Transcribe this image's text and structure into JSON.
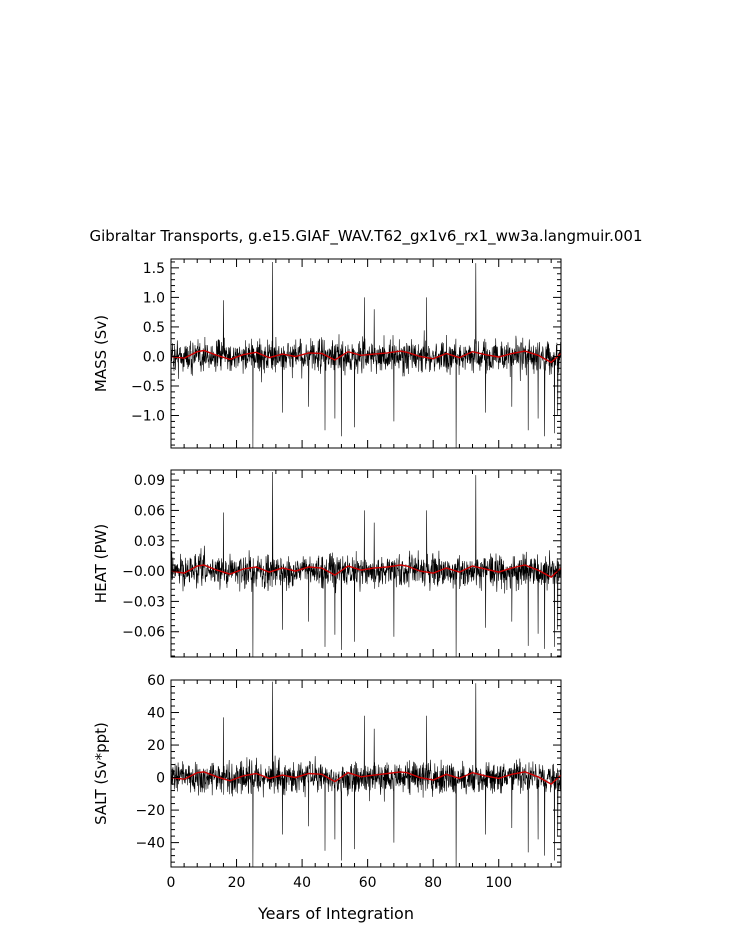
{
  "title": "Gibraltar Transports, g.e15.GIAF_WAV.T62_gx1v6_rx1_ww3a.langmuir.001",
  "chart_data": [
    {
      "type": "line",
      "ylabel": "MASS (Sv)",
      "ylim": [
        -1.55,
        1.65
      ],
      "xlim": [
        0,
        119
      ],
      "yticks": [
        1.5,
        1.0,
        0.5,
        0.0,
        -0.5,
        -1.0
      ],
      "ytick_labels": [
        "1.5",
        "1.0",
        "0.5",
        "0.0",
        "−0.5",
        "−1.0"
      ],
      "grid": false,
      "series": [
        {
          "color": "#000000",
          "spikes": [
            [
              16,
              0.95
            ],
            [
              25,
              -1.55
            ],
            [
              31,
              1.6
            ],
            [
              34,
              -0.95
            ],
            [
              42,
              -0.85
            ],
            [
              47,
              -1.25
            ],
            [
              50,
              -1.05
            ],
            [
              52,
              -1.35
            ],
            [
              56,
              -1.2
            ],
            [
              59,
              1.0
            ],
            [
              62,
              0.8
            ],
            [
              68,
              -1.1
            ],
            [
              78,
              1.0
            ],
            [
              87,
              -1.55
            ],
            [
              93,
              1.58
            ],
            [
              96,
              -0.95
            ],
            [
              104,
              -0.85
            ],
            [
              109,
              -1.25
            ],
            [
              112,
              -1.05
            ],
            [
              114,
              -1.35
            ],
            [
              117,
              -1.3
            ],
            [
              118,
              -1.0
            ]
          ]
        },
        {
          "color": "#cc0000",
          "x": [
            0,
            4,
            8,
            10,
            14,
            18,
            22,
            26,
            30,
            34,
            38,
            42,
            46,
            50,
            54,
            58,
            62,
            66,
            70,
            72,
            76,
            80,
            84,
            88,
            92,
            96,
            100,
            104,
            108,
            112,
            116,
            119
          ],
          "y": [
            0.0,
            -0.03,
            0.08,
            0.1,
            0.02,
            -0.05,
            0.03,
            0.07,
            -0.02,
            0.04,
            0.0,
            0.06,
            0.05,
            -0.06,
            0.08,
            0.02,
            0.04,
            0.06,
            0.09,
            0.07,
            0.0,
            -0.04,
            0.05,
            -0.02,
            0.08,
            0.03,
            -0.01,
            0.05,
            0.09,
            0.02,
            -0.1,
            0.05
          ]
        }
      ]
    },
    {
      "type": "line",
      "ylabel": "HEAT (PW)",
      "ylim": [
        -0.085,
        0.1
      ],
      "xlim": [
        0,
        119
      ],
      "yticks": [
        0.09,
        0.06,
        0.03,
        0.0,
        -0.03,
        -0.06
      ],
      "ytick_labels": [
        "0.09",
        "0.06",
        "0.03",
        "−0.00",
        "−0.03",
        "−0.06"
      ],
      "grid": false,
      "series": [
        {
          "color": "#000000",
          "spikes": [
            [
              16,
              0.058
            ],
            [
              25,
              -0.085
            ],
            [
              31,
              0.098
            ],
            [
              34,
              -0.058
            ],
            [
              42,
              -0.05
            ],
            [
              47,
              -0.075
            ],
            [
              50,
              -0.063
            ],
            [
              52,
              -0.078
            ],
            [
              56,
              -0.07
            ],
            [
              59,
              0.06
            ],
            [
              62,
              0.048
            ],
            [
              68,
              -0.065
            ],
            [
              78,
              0.06
            ],
            [
              87,
              -0.085
            ],
            [
              93,
              0.095
            ],
            [
              96,
              -0.056
            ],
            [
              104,
              -0.05
            ],
            [
              109,
              -0.074
            ],
            [
              112,
              -0.062
            ],
            [
              114,
              -0.077
            ],
            [
              117,
              -0.075
            ],
            [
              118,
              -0.058
            ]
          ]
        },
        {
          "color": "#cc0000",
          "x": [
            0,
            4,
            8,
            10,
            14,
            18,
            22,
            26,
            30,
            34,
            38,
            42,
            46,
            50,
            54,
            58,
            62,
            66,
            70,
            72,
            76,
            80,
            84,
            88,
            92,
            96,
            100,
            104,
            108,
            112,
            116,
            119
          ],
          "y": [
            0.0,
            -0.002,
            0.005,
            0.006,
            0.001,
            -0.003,
            0.002,
            0.004,
            -0.001,
            0.003,
            0.0,
            0.004,
            0.003,
            -0.004,
            0.005,
            0.001,
            0.003,
            0.004,
            0.006,
            0.005,
            0.0,
            -0.002,
            0.003,
            -0.001,
            0.005,
            0.002,
            -0.001,
            0.003,
            0.006,
            0.001,
            -0.006,
            0.003
          ]
        }
      ]
    },
    {
      "type": "line",
      "ylabel": "SALT (Sv*ppt)",
      "ylim": [
        -55,
        60
      ],
      "xlim": [
        0,
        119
      ],
      "xlabel": "Years of Integration",
      "xticks": [
        0,
        20,
        40,
        60,
        80,
        100
      ],
      "yticks": [
        60,
        40,
        20,
        0,
        -20,
        -40
      ],
      "ytick_labels": [
        "60",
        "40",
        "20",
        "0",
        "−20",
        "−40"
      ],
      "grid": false,
      "series": [
        {
          "color": "#000000",
          "spikes": [
            [
              16,
              37
            ],
            [
              25,
              -55
            ],
            [
              31,
              59
            ],
            [
              34,
              -35
            ],
            [
              42,
              -30
            ],
            [
              47,
              -45
            ],
            [
              50,
              -38
            ],
            [
              52,
              -51
            ],
            [
              56,
              -44
            ],
            [
              59,
              38
            ],
            [
              62,
              30
            ],
            [
              68,
              -40
            ],
            [
              78,
              38
            ],
            [
              87,
              -55
            ],
            [
              93,
              58
            ],
            [
              96,
              -35
            ],
            [
              104,
              -31
            ],
            [
              109,
              -46
            ],
            [
              112,
              -38
            ],
            [
              114,
              -48
            ],
            [
              117,
              -51
            ],
            [
              118,
              -36
            ]
          ]
        },
        {
          "color": "#cc0000",
          "x": [
            0,
            4,
            8,
            10,
            14,
            18,
            22,
            26,
            30,
            34,
            38,
            42,
            46,
            50,
            54,
            58,
            62,
            66,
            70,
            72,
            76,
            80,
            84,
            88,
            92,
            96,
            100,
            104,
            108,
            112,
            116,
            119
          ],
          "y": [
            0.0,
            -1.0,
            3.0,
            3.5,
            0.5,
            -2.0,
            1.0,
            2.5,
            -0.5,
            1.5,
            0.0,
            2.5,
            2.0,
            -2.5,
            3.0,
            0.5,
            1.5,
            2.5,
            3.5,
            3.0,
            0.0,
            -1.5,
            2.0,
            -0.5,
            3.0,
            1.0,
            -0.5,
            2.0,
            3.5,
            0.5,
            -4.0,
            1.5
          ]
        }
      ]
    }
  ]
}
